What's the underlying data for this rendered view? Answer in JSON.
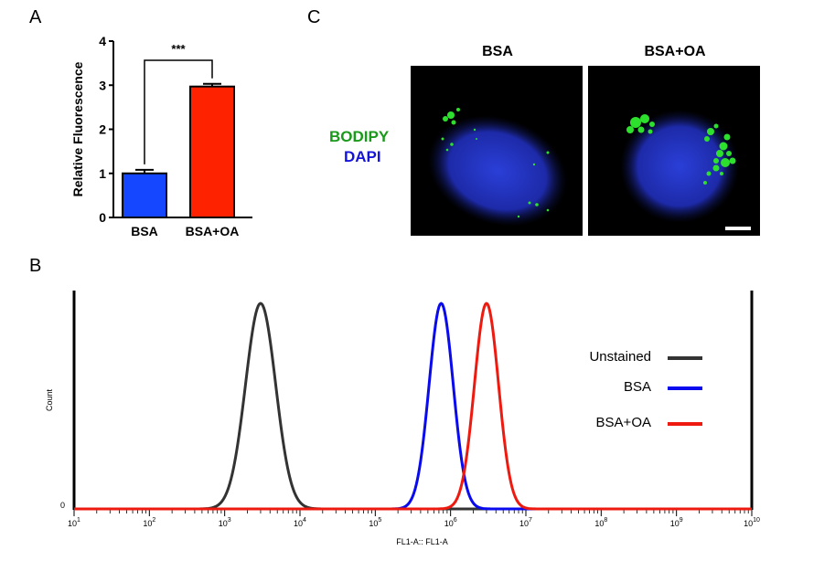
{
  "panels": {
    "a_label": "A",
    "b_label": "B",
    "c_label": "C"
  },
  "microscopy": {
    "titles": [
      "BSA",
      "BSA+OA"
    ],
    "stain_labels": [
      {
        "text": "BODIPY",
        "color": "#1a9a1a"
      },
      {
        "text": "DAPI",
        "color": "#1414d8"
      }
    ],
    "nucleus_color": "#2436c8",
    "droplet_color": "#2ee02e"
  },
  "chart_data": [
    {
      "type": "bar",
      "panel": "A",
      "categories": [
        "BSA",
        "BSA+OA"
      ],
      "values": [
        1.0,
        2.97
      ],
      "errors": [
        0.08,
        0.06
      ],
      "colors": [
        "#1447ff",
        "#ff2200"
      ],
      "ylabel": "Relative Fluorescence",
      "ylim": [
        0,
        4
      ],
      "yticks": [
        "0",
        "1",
        "2",
        "3",
        "4"
      ],
      "significance": "***"
    },
    {
      "type": "line",
      "panel": "B",
      "xlabel": "FL1-A:: FL1-A",
      "ylabel": "Count",
      "x_scale": "log",
      "xlim": [
        10,
        10000000000
      ],
      "x_tick_bases": [
        "10",
        "10",
        "10",
        "10",
        "10",
        "10",
        "10",
        "10",
        "10",
        "10"
      ],
      "x_tick_exponents": [
        "1",
        "2",
        "3",
        "4",
        "5",
        "6",
        "7",
        "8",
        "9",
        "10"
      ],
      "y_tick_labels": [
        "0"
      ],
      "series": [
        {
          "name": "Unstained",
          "color": "#333333",
          "peak_x": 3000,
          "log_sd": 0.2
        },
        {
          "name": "BSA",
          "color": "#0a0aee",
          "peak_x": 750000,
          "log_sd": 0.16
        },
        {
          "name": "BSA+OA",
          "color": "#ee1a10",
          "peak_x": 3000000,
          "log_sd": 0.16
        }
      ],
      "legend_position": "right"
    }
  ]
}
